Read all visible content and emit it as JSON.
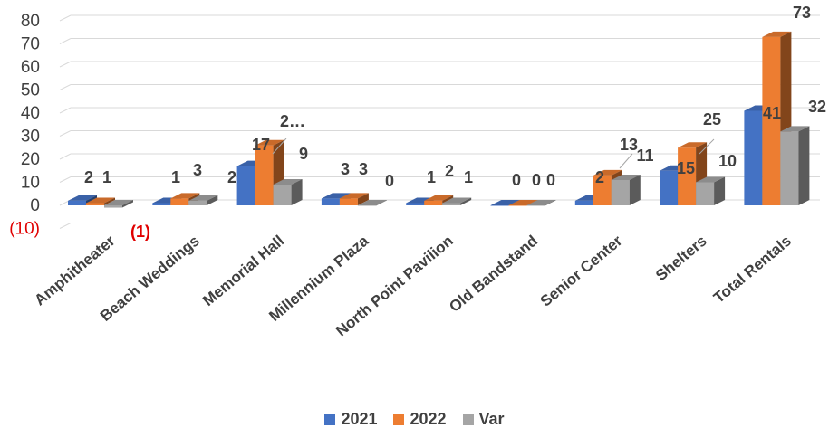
{
  "chart_data": {
    "type": "bar",
    "categories": [
      "Amphitheater",
      "Beach Weddings",
      "Memorial Hall",
      "Millennium Plaza",
      "North Point Pavilion",
      "Old Bandstand",
      "Senior Center",
      "Shelters",
      "Total Rentals"
    ],
    "series": [
      {
        "name": "2021",
        "values": [
          2,
          1,
          17,
          3,
          1,
          0,
          2,
          15,
          41
        ],
        "labels": [
          "2",
          "1",
          "17",
          "3",
          "1",
          "0",
          "2",
          "15",
          "41"
        ],
        "color": "#4472c4"
      },
      {
        "name": "2022",
        "values": [
          1,
          3,
          26,
          3,
          2,
          0,
          13,
          25,
          73
        ],
        "labels": [
          "1",
          "3",
          "2…",
          "3",
          "2",
          "0",
          "13",
          "25",
          "73"
        ],
        "color": "#ed7d31"
      },
      {
        "name": "Var",
        "values": [
          -1,
          2,
          9,
          0,
          1,
          0,
          11,
          10,
          32
        ],
        "labels": [
          "(1)",
          "2",
          "9",
          "0",
          "1",
          "0",
          "11",
          "10",
          "32"
        ],
        "color": "#a5a5a5"
      }
    ],
    "y_ticks": [
      "80",
      "70",
      "60",
      "50",
      "40",
      "30",
      "20",
      "10",
      "0",
      "(10)"
    ],
    "ylim": [
      -10,
      80
    ],
    "grid": true,
    "legend_position": "bottom"
  }
}
